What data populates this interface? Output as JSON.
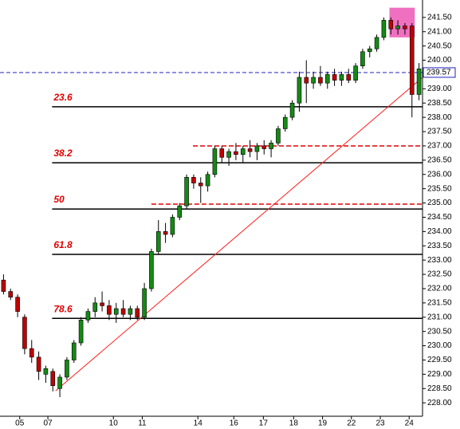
{
  "chart_data": {
    "type": "candlestick",
    "up_color": "#148a14",
    "down_color": "#c00000",
    "x": [
      0,
      1,
      2,
      3,
      4,
      5,
      6,
      7,
      8,
      9,
      10,
      11,
      12,
      13,
      14,
      15,
      16,
      17,
      18,
      19,
      20,
      21,
      22,
      23,
      24,
      25,
      26,
      27,
      28,
      29,
      30,
      31,
      32,
      33,
      34,
      35,
      36,
      37,
      38,
      39,
      40,
      41,
      42,
      43,
      44,
      45,
      46,
      47,
      48,
      49,
      50,
      51,
      52,
      53,
      54,
      55,
      56,
      57,
      58,
      59
    ],
    "open": [
      232.3,
      231.9,
      231.7,
      231.0,
      229.9,
      229.6,
      229.0,
      229.1,
      228.5,
      228.9,
      229.5,
      230.1,
      230.9,
      231.2,
      231.5,
      231.4,
      231.1,
      231.3,
      231.1,
      231.3,
      231.0,
      232.0,
      233.3,
      234.0,
      233.9,
      234.5,
      234.9,
      235.9,
      235.7,
      235.6,
      236.0,
      236.9,
      236.6,
      236.8,
      236.7,
      236.9,
      236.8,
      237.0,
      236.9,
      237.1,
      237.6,
      238.0,
      238.5,
      239.4,
      239.2,
      239.4,
      239.2,
      239.5,
      239.3,
      239.5,
      239.3,
      239.8,
      240.3,
      240.4,
      240.8,
      241.4,
      241.1,
      241.2,
      241.2,
      238.8
    ],
    "high": [
      232.5,
      232.0,
      231.8,
      231.1,
      230.2,
      229.8,
      229.3,
      229.2,
      229.0,
      229.6,
      230.2,
      231.0,
      231.3,
      231.7,
      231.9,
      231.6,
      231.5,
      231.6,
      231.4,
      231.4,
      232.2,
      233.4,
      234.4,
      234.3,
      234.6,
      235.0,
      236.0,
      236.0,
      235.9,
      236.1,
      237.0,
      237.0,
      236.9,
      237.1,
      237.0,
      237.2,
      237.1,
      237.2,
      237.2,
      237.7,
      238.1,
      238.6,
      239.6,
      240.0,
      239.6,
      239.8,
      239.6,
      239.7,
      239.6,
      239.7,
      239.9,
      240.4,
      240.5,
      240.9,
      241.5,
      241.5,
      241.4,
      241.3,
      241.3,
      239.9
    ],
    "low": [
      231.8,
      231.6,
      231.0,
      229.7,
      229.4,
      228.8,
      228.7,
      228.4,
      228.2,
      228.8,
      229.4,
      230.0,
      230.8,
      231.0,
      231.2,
      230.9,
      230.8,
      231.0,
      230.9,
      230.9,
      230.9,
      231.9,
      233.2,
      233.6,
      233.8,
      234.4,
      234.8,
      235.5,
      235.0,
      235.4,
      235.9,
      236.4,
      236.3,
      236.5,
      236.4,
      236.6,
      236.5,
      236.7,
      236.6,
      237.0,
      237.5,
      237.9,
      238.2,
      238.5,
      239.0,
      239.1,
      239.0,
      239.1,
      239.1,
      239.2,
      239.2,
      239.7,
      240.1,
      240.3,
      240.7,
      240.9,
      240.9,
      240.9,
      238.0,
      238.6
    ],
    "close": [
      231.9,
      231.7,
      231.2,
      229.9,
      229.6,
      229.1,
      229.2,
      228.6,
      228.9,
      229.5,
      230.1,
      230.9,
      231.2,
      231.5,
      231.4,
      231.1,
      231.3,
      231.1,
      231.3,
      231.0,
      232.0,
      233.3,
      234.0,
      233.9,
      234.5,
      234.9,
      235.9,
      235.7,
      235.6,
      236.0,
      236.9,
      236.6,
      236.8,
      236.7,
      236.9,
      236.8,
      237.0,
      236.9,
      237.1,
      237.6,
      238.0,
      238.5,
      239.4,
      239.2,
      239.4,
      239.2,
      239.5,
      239.3,
      239.5,
      239.3,
      239.8,
      240.3,
      240.4,
      240.8,
      241.4,
      241.1,
      241.2,
      241.1,
      238.8,
      239.7
    ],
    "xlim": [
      -0.5,
      59.5
    ],
    "xticks": [
      {
        "value": 2.3,
        "label": "05"
      },
      {
        "value": 6.3,
        "label": "07"
      },
      {
        "value": 15.6,
        "label": "10"
      },
      {
        "value": 19.7,
        "label": "11"
      },
      {
        "value": 27.6,
        "label": "14"
      },
      {
        "value": 32.7,
        "label": "16"
      },
      {
        "value": 36.9,
        "label": "17"
      },
      {
        "value": 41.2,
        "label": "18"
      },
      {
        "value": 45.3,
        "label": "19"
      },
      {
        "value": 49.4,
        "label": "22"
      },
      {
        "value": 53.5,
        "label": "23"
      },
      {
        "value": 57.6,
        "label": "24"
      }
    ],
    "ylim": [
      227.53,
      242.11
    ],
    "yticks": [
      {
        "value": 228,
        "label": "228.00"
      },
      {
        "value": 228.5,
        "label": "228.50"
      },
      {
        "value": 229,
        "label": "229.00"
      },
      {
        "value": 229.5,
        "label": "229.50"
      },
      {
        "value": 230,
        "label": "230.00"
      },
      {
        "value": 230.5,
        "label": "230.50"
      },
      {
        "value": 231,
        "label": "231.00"
      },
      {
        "value": 231.5,
        "label": "231.50"
      },
      {
        "value": 232,
        "label": "232.00"
      },
      {
        "value": 232.5,
        "label": "232.50"
      },
      {
        "value": 233,
        "label": "233.00"
      },
      {
        "value": 233.5,
        "label": "233.50"
      },
      {
        "value": 234,
        "label": "234.00"
      },
      {
        "value": 234.5,
        "label": "234.50"
      },
      {
        "value": 235,
        "label": "235.00"
      },
      {
        "value": 235.5,
        "label": "235.50"
      },
      {
        "value": 236,
        "label": "236.00"
      },
      {
        "value": 236.5,
        "label": "236.50"
      },
      {
        "value": 237,
        "label": "237.00"
      },
      {
        "value": 237.5,
        "label": "237.50"
      },
      {
        "value": 238,
        "label": "238.00"
      },
      {
        "value": 238.5,
        "label": "238.50"
      },
      {
        "value": 239,
        "label": "239.00"
      },
      {
        "value": 239.5,
        "label": "239.50"
      },
      {
        "value": 240,
        "label": "240.00"
      },
      {
        "value": 240.5,
        "label": "240.50"
      },
      {
        "value": 241,
        "label": "241.00"
      },
      {
        "value": 241.5,
        "label": "241.50"
      }
    ],
    "current_price": {
      "value": 239.57,
      "label": "239.57",
      "color": "#2020c0"
    },
    "fib_levels": [
      {
        "label": "23.6",
        "value": 238.37
      },
      {
        "label": "38.2",
        "value": 236.41
      },
      {
        "label": "50",
        "value": 234.79
      },
      {
        "label": "61.8",
        "value": 233.2
      },
      {
        "label": "78.6",
        "value": 230.96
      }
    ],
    "fib_start_x": 6.9,
    "resistance_lines": [
      {
        "value": 237.0,
        "start_x": 26.9
      },
      {
        "value": 234.96,
        "start_x": 21.0
      }
    ],
    "trendline": {
      "x": [
        7.4,
        59.5
      ],
      "y": [
        228.42,
        239.4
      ],
      "color": "#ff2020"
    },
    "highlight": {
      "x": [
        54.8,
        58.4
      ],
      "y": [
        240.8,
        241.84
      ],
      "color": "#f070c0"
    }
  }
}
